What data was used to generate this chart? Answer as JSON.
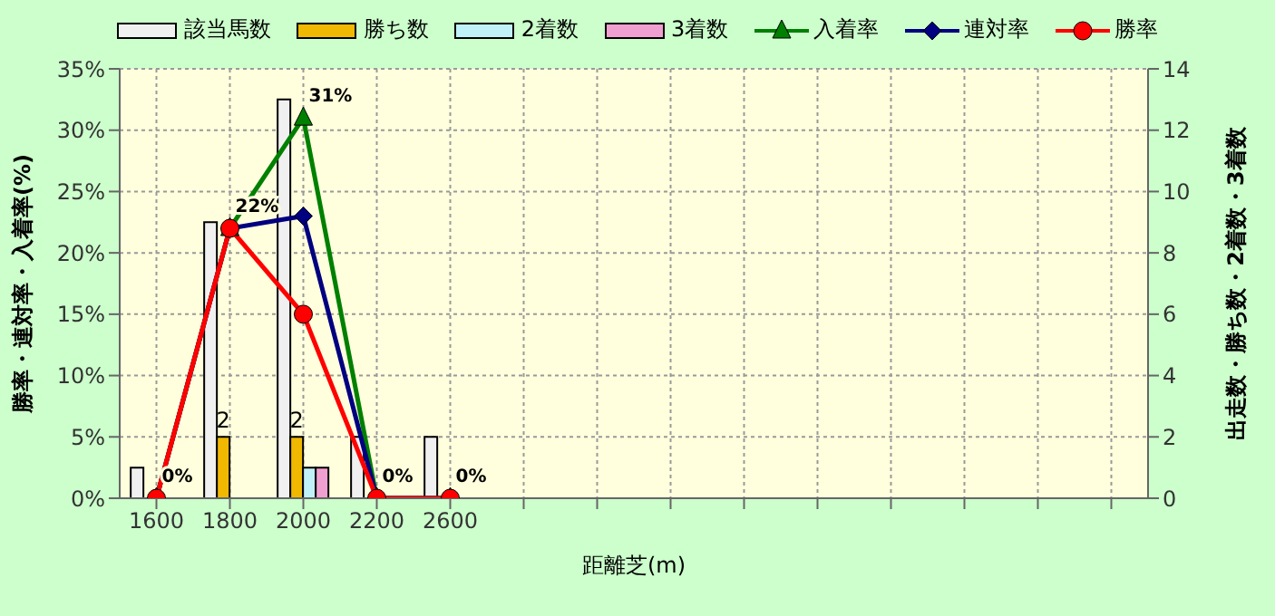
{
  "chart_data": {
    "type": "bar",
    "xlabel": "距離芝(m)",
    "ylabel": "勝率・連対率・入着率(%)",
    "y2label": "出走数・勝ち数・2着数・3着数",
    "categories": [
      "1600",
      "1800",
      "2000",
      "2200",
      "2600",
      null,
      null,
      null,
      null,
      null,
      null,
      null,
      null,
      null
    ],
    "series": [
      {
        "name": "該当馬数",
        "axis": "y2",
        "color": "#f0f0f0",
        "values": [
          1,
          9,
          13,
          2,
          2,
          null,
          null,
          null,
          null,
          null,
          null,
          null,
          null,
          null
        ]
      },
      {
        "name": "勝ち数",
        "axis": "y2",
        "color": "#f0b800",
        "values": [
          0,
          2,
          2,
          0,
          0,
          null,
          null,
          null,
          null,
          null,
          null,
          null,
          null,
          null
        ],
        "value_labels": [
          null,
          "2",
          "2",
          null,
          null,
          null,
          null,
          null,
          null,
          null,
          null,
          null,
          null,
          null
        ]
      },
      {
        "name": "2着数",
        "axis": "y2",
        "color": "#c0f0f8",
        "values": [
          0,
          0,
          1,
          0,
          0,
          null,
          null,
          null,
          null,
          null,
          null,
          null,
          null,
          null
        ]
      },
      {
        "name": "3着数",
        "axis": "y2",
        "color": "#f0a0d0",
        "values": [
          0,
          0,
          1,
          0,
          0,
          null,
          null,
          null,
          null,
          null,
          null,
          null,
          null,
          null
        ]
      },
      {
        "name": "入着率",
        "type": "line",
        "axis": "y",
        "color": "#008000",
        "marker": "triangle",
        "values": [
          0,
          22,
          31,
          0,
          0,
          null,
          null,
          null,
          null,
          null,
          null,
          null,
          null,
          null
        ],
        "value_labels": [
          "0%",
          "22%",
          "31%",
          "0%",
          "0%",
          null,
          null,
          null,
          null,
          null,
          null,
          null,
          null,
          null
        ]
      },
      {
        "name": "連対率",
        "type": "line",
        "axis": "y",
        "color": "#000080",
        "marker": "diamond",
        "values": [
          0,
          22,
          23,
          0,
          0,
          null,
          null,
          null,
          null,
          null,
          null,
          null,
          null,
          null
        ]
      },
      {
        "name": "勝率",
        "type": "line",
        "axis": "y",
        "color": "#ff0000",
        "marker": "circle",
        "values": [
          0,
          22,
          15,
          0,
          0,
          null,
          null,
          null,
          null,
          null,
          null,
          null,
          null,
          null
        ]
      }
    ],
    "ylim": [
      0,
      35
    ],
    "yticks": [
      {
        "value": 0,
        "label": "0%"
      },
      {
        "value": 5,
        "label": "5%"
      },
      {
        "value": 10,
        "label": "10%"
      },
      {
        "value": 15,
        "label": "15%"
      },
      {
        "value": 20,
        "label": "20%"
      },
      {
        "value": 25,
        "label": "25%"
      },
      {
        "value": 30,
        "label": "30%"
      },
      {
        "value": 35,
        "label": "35%"
      }
    ],
    "y2lim": [
      0,
      14
    ],
    "y2ticks": [
      0,
      2,
      4,
      6,
      8,
      10,
      12,
      14
    ],
    "grid": true,
    "legend": "top"
  }
}
